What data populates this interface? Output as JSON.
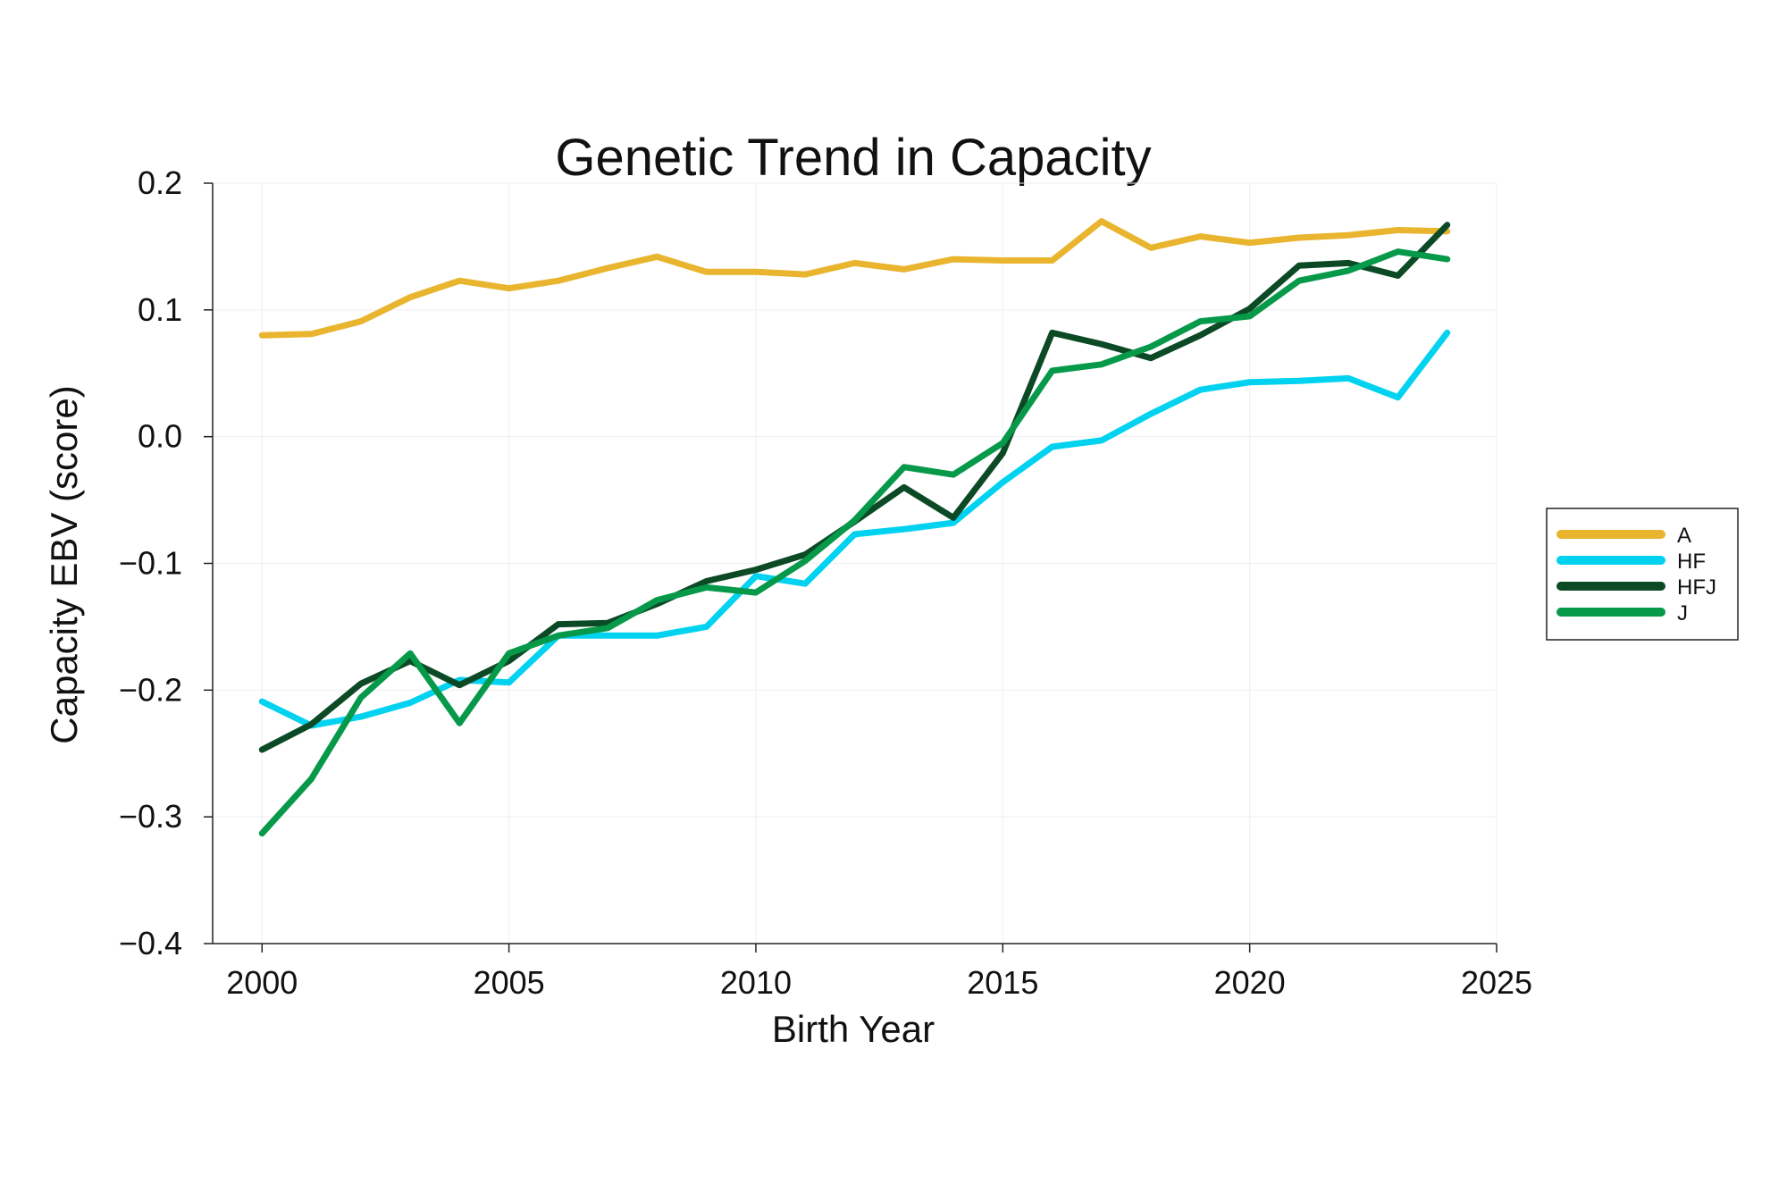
{
  "chart_data": {
    "type": "line",
    "title": "Genetic Trend in Capacity",
    "xlabel": "Birth Year",
    "ylabel": "Capacity EBV (score)",
    "xlim": [
      1999,
      2025
    ],
    "ylim": [
      -0.4,
      0.2
    ],
    "xticks": [
      2000,
      2005,
      2010,
      2015,
      2020,
      2025
    ],
    "xtick_labels": [
      "2000",
      "2005",
      "2010",
      "2015",
      "2020",
      "2025"
    ],
    "yticks": [
      0.2,
      0.1,
      0.0,
      -0.1,
      -0.2,
      -0.3,
      -0.4
    ],
    "ytick_labels": [
      "0.2",
      "0.1",
      "0.0",
      "−0.1",
      "−0.2",
      "−0.3",
      "−0.4"
    ],
    "grid": true,
    "legend_position": "right",
    "x": [
      2000,
      2001,
      2002,
      2003,
      2004,
      2005,
      2006,
      2007,
      2008,
      2009,
      2010,
      2011,
      2012,
      2013,
      2014,
      2015,
      2016,
      2017,
      2018,
      2019,
      2020,
      2021,
      2022,
      2023,
      2024
    ],
    "series": [
      {
        "name": "A",
        "color": "#E9B42E",
        "values": [
          0.08,
          0.081,
          0.091,
          0.11,
          0.123,
          0.117,
          0.123,
          0.133,
          0.142,
          0.13,
          0.13,
          0.128,
          0.137,
          0.132,
          0.14,
          0.139,
          0.139,
          0.17,
          0.149,
          0.158,
          0.153,
          0.157,
          0.159,
          0.163,
          0.162
        ]
      },
      {
        "name": "HF",
        "color": "#00D2F0",
        "values": [
          -0.209,
          -0.228,
          -0.221,
          -0.21,
          -0.192,
          -0.194,
          -0.157,
          -0.157,
          -0.157,
          -0.15,
          -0.11,
          -0.116,
          -0.077,
          -0.073,
          -0.068,
          -0.036,
          -0.008,
          -0.003,
          0.018,
          0.037,
          0.043,
          0.044,
          0.046,
          0.031,
          0.082
        ]
      },
      {
        "name": "HFJ",
        "color": "#0C4A26",
        "values": [
          -0.247,
          -0.227,
          -0.195,
          -0.177,
          -0.196,
          -0.177,
          -0.148,
          -0.147,
          -0.132,
          -0.114,
          -0.105,
          -0.093,
          -0.067,
          -0.04,
          -0.064,
          -0.013,
          0.082,
          0.073,
          0.062,
          0.08,
          0.101,
          0.135,
          0.137,
          0.127,
          0.167
        ]
      },
      {
        "name": "J",
        "color": "#06994A",
        "values": [
          -0.313,
          -0.27,
          -0.206,
          -0.171,
          -0.226,
          -0.171,
          -0.157,
          -0.151,
          -0.129,
          -0.119,
          -0.123,
          -0.098,
          -0.066,
          -0.024,
          -0.03,
          -0.005,
          0.052,
          0.057,
          0.071,
          0.091,
          0.095,
          0.123,
          0.131,
          0.146,
          0.14
        ]
      }
    ]
  }
}
